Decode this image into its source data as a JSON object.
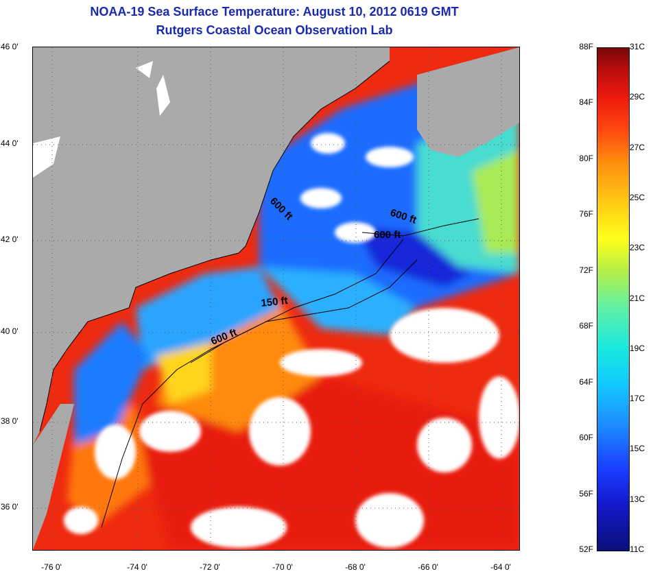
{
  "header": {
    "title": "NOAA-19 Sea Surface Temperature:  August 10, 2012 0619 GMT",
    "subtitle": "Rutgers Coastal Ocean Observation Lab"
  },
  "axes": {
    "lat_labels": [
      "46 0'",
      "44 0'",
      "42 0'",
      "40 0'",
      "38 0'",
      "36 0'"
    ],
    "lat_values": [
      46,
      44,
      42,
      40,
      38,
      36
    ],
    "lon_labels": [
      "-76 0'",
      "-74 0'",
      "-72 0'",
      "-70 0'",
      "-68 0'",
      "-66 0'",
      "-64 0'"
    ],
    "lon_values": [
      -76,
      -74,
      -72,
      -70,
      -68,
      -66,
      -64
    ]
  },
  "contours": {
    "label_600_a": "600 ft",
    "label_600_b": "600 ft",
    "label_600_c": "600 ft",
    "label_150": "150 ft",
    "label_600_d": "600 ft"
  },
  "colorbar": {
    "fahrenheit": [
      "88F",
      "84F",
      "80F",
      "76F",
      "72F",
      "68F",
      "64F",
      "60F",
      "56F",
      "52F"
    ],
    "celsius": [
      "31C",
      "29C",
      "27C",
      "25C",
      "23C",
      "21C",
      "19C",
      "17C",
      "15C",
      "13C",
      "11C"
    ]
  },
  "colors": {
    "land": "#aaaaaa",
    "cloud": "#ffffff",
    "title": "#1a2ab0"
  }
}
